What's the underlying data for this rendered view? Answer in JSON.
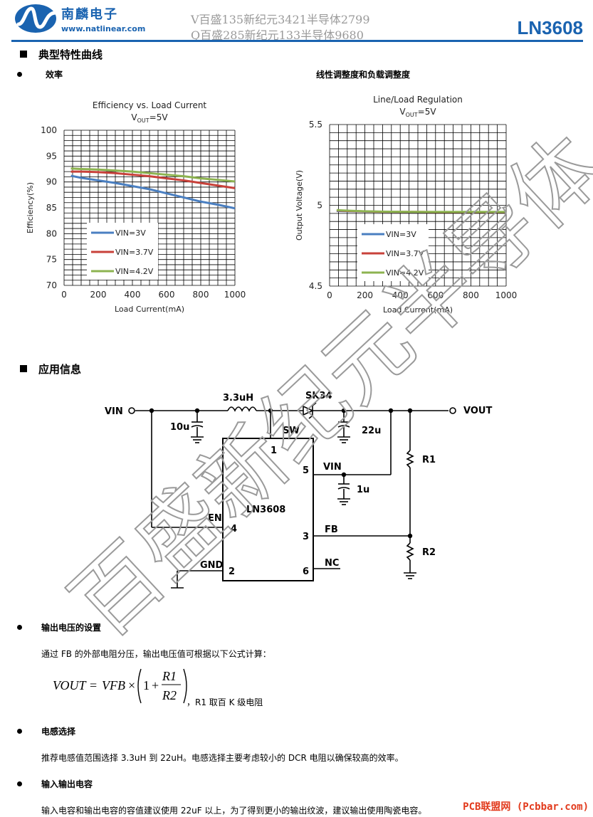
{
  "header": {
    "company_cn": "南麟电子",
    "company_url": "www.natlinear.com",
    "watermark_line1": "V百盛135新纪元3421半导体2799",
    "watermark_line2": "Q百盛285新纪元133半导体9680",
    "part_number": "LN3608"
  },
  "section_typical": "典型特性曲线",
  "sub_efficiency": "效率",
  "sub_regulation": "线性调整度和负载调整度",
  "chart_data": [
    {
      "type": "line",
      "title": "Efficiency vs. Load Current",
      "subtitle_main": "V",
      "subtitle_sub": "OUT",
      "subtitle_tail": "=5V",
      "xlabel": "Load Current(mA)",
      "ylabel": "Efficiency(%)",
      "xlim": [
        0,
        1000
      ],
      "ylim": [
        70,
        100
      ],
      "xticks": [
        "0",
        "200",
        "400",
        "600",
        "800",
        "1000"
      ],
      "yticks": [
        "100",
        "95",
        "90",
        "85",
        "80",
        "75",
        "70"
      ],
      "grid": true,
      "legend": "bottom-left",
      "x": [
        40,
        100,
        200,
        300,
        400,
        500,
        600,
        700,
        800,
        900,
        1000
      ],
      "series": [
        {
          "name": "VIN=3V",
          "color": "#4a7fc1",
          "values": [
            91.2,
            90.8,
            90.3,
            89.8,
            89.2,
            88.6,
            87.8,
            87.0,
            86.2,
            85.6,
            84.9
          ]
        },
        {
          "name": "VIN=3.7V",
          "color": "#c8413a",
          "values": [
            92.0,
            92.0,
            91.9,
            91.7,
            91.4,
            91.1,
            90.7,
            90.3,
            89.8,
            89.3,
            88.8
          ]
        },
        {
          "name": "VIN=4.2V",
          "color": "#8db350",
          "values": [
            92.6,
            92.5,
            92.4,
            92.2,
            92.0,
            91.7,
            91.4,
            91.1,
            90.7,
            90.4,
            90.1
          ]
        }
      ]
    },
    {
      "type": "line",
      "title": "Line/Load Regulation",
      "subtitle_main": "V",
      "subtitle_sub": "OUT",
      "subtitle_tail": "=5V",
      "xlabel": "Load Current(mA)",
      "ylabel": "Output Voltage(V)",
      "xlim": [
        0,
        1000
      ],
      "ylim": [
        4.5,
        5.5
      ],
      "xticks": [
        "0",
        "200",
        "400",
        "600",
        "800",
        "1000"
      ],
      "yticks": [
        "5.5",
        "5",
        "4.5"
      ],
      "grid": true,
      "legend": "bottom-left",
      "x": [
        40,
        100,
        200,
        300,
        400,
        500,
        600,
        700,
        800,
        900,
        1000
      ],
      "series": [
        {
          "name": "VIN=3V",
          "color": "#4a7fc1",
          "values": [
            4.965,
            4.963,
            4.961,
            4.96,
            4.959,
            4.958,
            4.958,
            4.958,
            4.958,
            4.958,
            4.958
          ]
        },
        {
          "name": "VIN=3.7V",
          "color": "#c8413a",
          "values": [
            4.968,
            4.965,
            4.962,
            4.96,
            4.959,
            4.959,
            4.958,
            4.958,
            4.958,
            4.958,
            4.958
          ]
        },
        {
          "name": "VIN=4.2V",
          "color": "#8db350",
          "values": [
            4.97,
            4.967,
            4.963,
            4.961,
            4.96,
            4.959,
            4.959,
            4.959,
            4.959,
            4.959,
            4.959
          ]
        }
      ]
    }
  ],
  "section_app": "应用信息",
  "circuit": {
    "vin": "VIN",
    "vout": "VOUT",
    "inductor": "3.3uH",
    "diode": "SK34",
    "cin": "10u",
    "cout": "22u",
    "c_vin": "1u",
    "r1": "R1",
    "r2": "R2",
    "ic": "LN3608",
    "pin_sw": "SW",
    "pin1": "1",
    "pin5": "5",
    "pin_vin": "VIN",
    "pin_en": "EN",
    "pin4": "4",
    "pin3": "3",
    "pin_fb": "FB",
    "pin_gnd": "GND",
    "pin2": "2",
    "pin6": "6",
    "pin_nc": "NC"
  },
  "sub_vout": "输出电压的设置",
  "vout_text": "通过 FB 的外部电阻分压，输出电压值可根据以下公式计算：",
  "formula_note": "，R1 取百 K 级电阻",
  "sub_inductor": "电感选择",
  "inductor_text": "推荐电感值范围选择 3.3uH 到 22uH。电感选择主要考虑较小的 DCR 电阻以确保较高的效率。",
  "sub_cap": "输入输出电容",
  "cap_text": "输入电容和输出电容的容值建议使用 22uF 以上，为了得到更小的输出纹波，建议输出使用陶瓷电容。",
  "big_watermark": "百盛新纪元半导体",
  "footer_badge": "PCB联盟网 (Pcbbar.com)"
}
